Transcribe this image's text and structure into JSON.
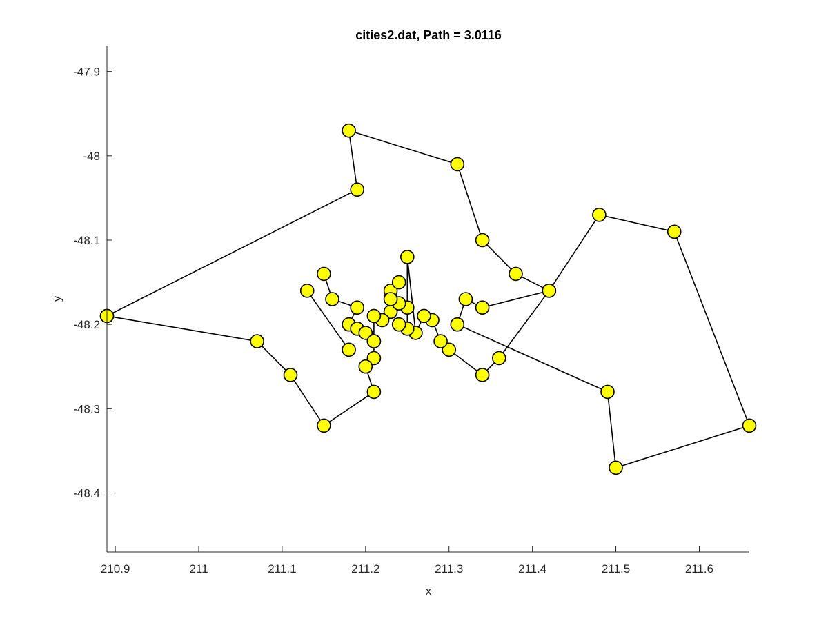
{
  "chart_data": {
    "type": "line",
    "title": "cities2.dat, Path = 3.0116",
    "xlabel": "x",
    "ylabel": "y",
    "xlim": [
      210.89,
      211.66
    ],
    "ylim": [
      -48.47,
      -47.87
    ],
    "xticks": [
      "210.9",
      "211",
      "211.1",
      "211.2",
      "211.3",
      "211.4",
      "211.5",
      "211.6"
    ],
    "yticks": [
      "-47.9",
      "-48",
      "-48.1",
      "-48.2",
      "-48.3",
      "-48.4"
    ],
    "grid": false,
    "marker_color": "#ffff00",
    "line_color": "#000000",
    "series": [
      {
        "points": [
          [
            210.89,
            -48.19
          ],
          [
            211.19,
            -48.04
          ],
          [
            211.18,
            -47.97
          ],
          [
            211.31,
            -48.01
          ],
          [
            211.34,
            -48.1
          ],
          [
            211.38,
            -48.14
          ],
          [
            211.42,
            -48.16
          ],
          [
            211.34,
            -48.18
          ],
          [
            211.32,
            -48.17
          ],
          [
            211.31,
            -48.2
          ],
          [
            211.49,
            -48.28
          ],
          [
            211.5,
            -48.37
          ],
          [
            211.66,
            -48.32
          ],
          [
            211.57,
            -48.09
          ],
          [
            211.48,
            -48.07
          ],
          [
            211.42,
            -48.16
          ],
          [
            211.36,
            -48.24
          ],
          [
            211.34,
            -48.26
          ],
          [
            211.3,
            -48.23
          ],
          [
            211.29,
            -48.22
          ],
          [
            211.28,
            -48.195
          ],
          [
            211.27,
            -48.19
          ],
          [
            211.26,
            -48.21
          ],
          [
            211.25,
            -48.12
          ],
          [
            211.25,
            -48.205
          ],
          [
            211.24,
            -48.2
          ],
          [
            211.23,
            -48.185
          ],
          [
            211.25,
            -48.18
          ],
          [
            211.24,
            -48.175
          ],
          [
            211.23,
            -48.16
          ],
          [
            211.24,
            -48.15
          ],
          [
            211.23,
            -48.17
          ],
          [
            211.22,
            -48.195
          ],
          [
            211.21,
            -48.19
          ],
          [
            211.21,
            -48.22
          ],
          [
            211.21,
            -48.24
          ],
          [
            211.2,
            -48.25
          ],
          [
            211.21,
            -48.28
          ],
          [
            211.15,
            -48.32
          ],
          [
            211.11,
            -48.26
          ],
          [
            211.07,
            -48.22
          ],
          [
            210.89,
            -48.19
          ]
        ]
      },
      {
        "points": [
          [
            211.13,
            -48.16
          ],
          [
            211.18,
            -48.23
          ]
        ]
      },
      {
        "points": [
          [
            211.15,
            -48.14
          ],
          [
            211.16,
            -48.17
          ],
          [
            211.19,
            -48.18
          ],
          [
            211.18,
            -48.2
          ],
          [
            211.19,
            -48.205
          ],
          [
            211.2,
            -48.21
          ],
          [
            211.21,
            -48.22
          ]
        ]
      }
    ]
  }
}
